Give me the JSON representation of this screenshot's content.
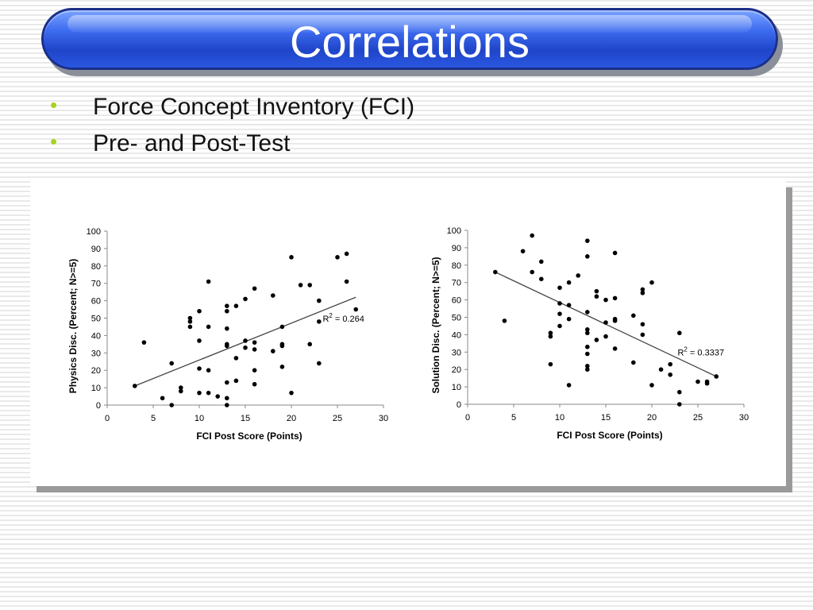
{
  "slide": {
    "title": "Correlations",
    "bullets": [
      "Force Concept Inventory (FCI)",
      "Pre- and Post-Test"
    ]
  },
  "colors": {
    "title_bar": "#2a57e0",
    "bullet": "#a7d21c"
  },
  "chart_data": [
    {
      "type": "scatter",
      "xlabel": "FCI Post Score (Points)",
      "ylabel": "Physics Disc. (Percent; N>=5)",
      "xlim": [
        0,
        30
      ],
      "ylim": [
        0,
        100
      ],
      "xticks": [
        0,
        5,
        10,
        15,
        20,
        25,
        30
      ],
      "yticks": [
        0,
        10,
        20,
        30,
        40,
        50,
        60,
        70,
        80,
        90,
        100
      ],
      "annotation": "= 0.264",
      "trendline": {
        "x": [
          3,
          27
        ],
        "y": [
          11,
          62
        ]
      },
      "points": [
        [
          3,
          11
        ],
        [
          4,
          36
        ],
        [
          6,
          4
        ],
        [
          7,
          24
        ],
        [
          7,
          0
        ],
        [
          8,
          10
        ],
        [
          8,
          8
        ],
        [
          9,
          50
        ],
        [
          9,
          48
        ],
        [
          9,
          45
        ],
        [
          10,
          37
        ],
        [
          10,
          54
        ],
        [
          10,
          21
        ],
        [
          10,
          7
        ],
        [
          11,
          71
        ],
        [
          11,
          45
        ],
        [
          11,
          20
        ],
        [
          11,
          7
        ],
        [
          12,
          5
        ],
        [
          13,
          57
        ],
        [
          13,
          54
        ],
        [
          13,
          44
        ],
        [
          13,
          35
        ],
        [
          13,
          34
        ],
        [
          13,
          13
        ],
        [
          13,
          4
        ],
        [
          13,
          0
        ],
        [
          14,
          57
        ],
        [
          14,
          27
        ],
        [
          14,
          14
        ],
        [
          15,
          61
        ],
        [
          15,
          37
        ],
        [
          15,
          33
        ],
        [
          16,
          67
        ],
        [
          16,
          36
        ],
        [
          16,
          32
        ],
        [
          16,
          20
        ],
        [
          16,
          12
        ],
        [
          18,
          63
        ],
        [
          18,
          31
        ],
        [
          19,
          45
        ],
        [
          19,
          35
        ],
        [
          19,
          34
        ],
        [
          19,
          22
        ],
        [
          20,
          85
        ],
        [
          20,
          7
        ],
        [
          21,
          69
        ],
        [
          22,
          69
        ],
        [
          22,
          35
        ],
        [
          23,
          60
        ],
        [
          23,
          48
        ],
        [
          23,
          24
        ],
        [
          25,
          85
        ],
        [
          26,
          87
        ],
        [
          26,
          71
        ],
        [
          27,
          55
        ]
      ]
    },
    {
      "type": "scatter",
      "xlabel": "FCI Post Score (Points)",
      "ylabel": "Solution Disc. (Percent; N>=5)",
      "xlim": [
        0,
        30
      ],
      "ylim": [
        0,
        100
      ],
      "xticks": [
        0,
        5,
        10,
        15,
        20,
        25,
        30
      ],
      "yticks": [
        0,
        10,
        20,
        30,
        40,
        50,
        60,
        70,
        80,
        90,
        100
      ],
      "annotation": "= 0.3337",
      "trendline": {
        "x": [
          3,
          27
        ],
        "y": [
          76,
          16
        ]
      },
      "points": [
        [
          3,
          76
        ],
        [
          4,
          48
        ],
        [
          6,
          88
        ],
        [
          7,
          97
        ],
        [
          7,
          76
        ],
        [
          8,
          82
        ],
        [
          8,
          72
        ],
        [
          9,
          41
        ],
        [
          9,
          39
        ],
        [
          9,
          23
        ],
        [
          10,
          67
        ],
        [
          10,
          58
        ],
        [
          10,
          52
        ],
        [
          10,
          45
        ],
        [
          11,
          70
        ],
        [
          11,
          57
        ],
        [
          11,
          49
        ],
        [
          11,
          11
        ],
        [
          12,
          74
        ],
        [
          13,
          94
        ],
        [
          13,
          85
        ],
        [
          13,
          53
        ],
        [
          13,
          43
        ],
        [
          13,
          41
        ],
        [
          13,
          33
        ],
        [
          13,
          29
        ],
        [
          13,
          22
        ],
        [
          13,
          20
        ],
        [
          14,
          65
        ],
        [
          14,
          62
        ],
        [
          14,
          37
        ],
        [
          15,
          60
        ],
        [
          15,
          47
        ],
        [
          15,
          39
        ],
        [
          16,
          87
        ],
        [
          16,
          61
        ],
        [
          16,
          49
        ],
        [
          16,
          48
        ],
        [
          16,
          32
        ],
        [
          18,
          51
        ],
        [
          18,
          24
        ],
        [
          19,
          66
        ],
        [
          19,
          64
        ],
        [
          19,
          46
        ],
        [
          19,
          40
        ],
        [
          20,
          70
        ],
        [
          20,
          11
        ],
        [
          21,
          20
        ],
        [
          22,
          23
        ],
        [
          22,
          17
        ],
        [
          23,
          41
        ],
        [
          23,
          7
        ],
        [
          23,
          0
        ],
        [
          25,
          13
        ],
        [
          26,
          13
        ],
        [
          26,
          12
        ],
        [
          27,
          16
        ]
      ]
    }
  ]
}
